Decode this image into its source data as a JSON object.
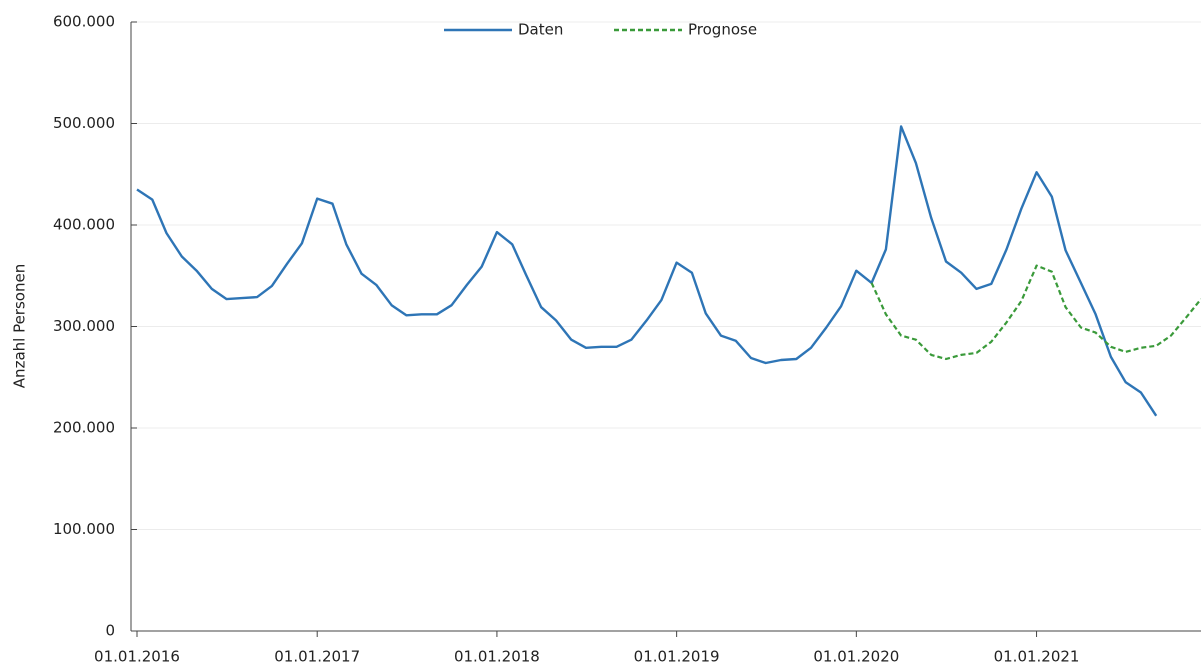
{
  "chart_data": {
    "type": "line",
    "y_label": "Anzahl Personen",
    "x": [
      "01.01.2016",
      "01.02.2016",
      "01.03.2016",
      "01.04.2016",
      "01.05.2016",
      "01.06.2016",
      "01.07.2016",
      "01.08.2016",
      "01.09.2016",
      "01.10.2016",
      "01.11.2016",
      "01.12.2016",
      "01.01.2017",
      "01.02.2017",
      "01.03.2017",
      "01.04.2017",
      "01.05.2017",
      "01.06.2017",
      "01.07.2017",
      "01.08.2017",
      "01.09.2017",
      "01.10.2017",
      "01.11.2017",
      "01.12.2017",
      "01.01.2018",
      "01.02.2018",
      "01.03.2018",
      "01.04.2018",
      "01.05.2018",
      "01.06.2018",
      "01.07.2018",
      "01.08.2018",
      "01.09.2018",
      "01.10.2018",
      "01.11.2018",
      "01.12.2018",
      "01.01.2019",
      "01.02.2019",
      "01.03.2019",
      "01.04.2019",
      "01.05.2019",
      "01.06.2019",
      "01.07.2019",
      "01.08.2019",
      "01.09.2019",
      "01.10.2019",
      "01.11.2019",
      "01.12.2019",
      "01.01.2020",
      "01.02.2020",
      "01.03.2020",
      "01.04.2020",
      "01.05.2020",
      "01.06.2020",
      "01.07.2020",
      "01.08.2020",
      "01.09.2020",
      "01.10.2020",
      "01.11.2020",
      "01.12.2020",
      "01.01.2021",
      "01.02.2021",
      "01.03.2021",
      "01.04.2021",
      "01.05.2021",
      "01.06.2021",
      "01.07.2021",
      "01.08.2021",
      "01.09.2021",
      "01.10.2021",
      "01.11.2021",
      "01.12.2021"
    ],
    "series": [
      {
        "name": "Daten",
        "color": "#2e75b6",
        "dash": false,
        "values": [
          435000,
          425000,
          392000,
          369000,
          355000,
          337000,
          327000,
          328000,
          329000,
          340000,
          362000,
          382000,
          426000,
          421000,
          381000,
          352000,
          341000,
          321000,
          311000,
          312000,
          312000,
          321000,
          341000,
          359000,
          393000,
          381000,
          351000,
          319000,
          306000,
          287000,
          279000,
          280000,
          280000,
          287000,
          306000,
          326000,
          363000,
          353000,
          313000,
          291000,
          286000,
          269000,
          264000,
          267000,
          268000,
          279000,
          299000,
          320000,
          355000,
          343000,
          376000,
          497000,
          461000,
          407000,
          364000,
          353000,
          337000,
          342000,
          376000,
          416000,
          452000,
          428000,
          375000,
          343000,
          312000,
          270000,
          245000,
          235000,
          212000,
          null,
          null,
          null
        ]
      },
      {
        "name": "Prognose",
        "color": "#3a9a3a",
        "dash": true,
        "values": [
          null,
          null,
          null,
          null,
          null,
          null,
          null,
          null,
          null,
          null,
          null,
          null,
          null,
          null,
          null,
          null,
          null,
          null,
          null,
          null,
          null,
          null,
          null,
          null,
          null,
          null,
          null,
          null,
          null,
          null,
          null,
          null,
          null,
          null,
          null,
          null,
          null,
          null,
          null,
          null,
          null,
          null,
          null,
          null,
          null,
          null,
          null,
          null,
          null,
          343000,
          312000,
          291000,
          287000,
          272000,
          268000,
          272000,
          274000,
          285000,
          304000,
          325000,
          360000,
          354000,
          319000,
          299000,
          294000,
          280000,
          275000,
          279000,
          281000,
          291000,
          309000,
          327000
        ]
      }
    ],
    "xlim": [
      "01.01.2016",
      "01.12.2021"
    ],
    "xticks": [
      "01.01.2016",
      "01.01.2017",
      "01.01.2018",
      "01.01.2019",
      "01.01.2020",
      "01.01.2021"
    ],
    "ylim": [
      0,
      600000
    ],
    "yticks": [
      0,
      {
        "value": 100000,
        "label": "100.000"
      },
      {
        "value": 200000,
        "label": "200.000"
      },
      {
        "value": 300000,
        "label": "300.000"
      },
      {
        "value": 400000,
        "label": "400.000"
      },
      {
        "value": 500000,
        "label": "500.000"
      },
      {
        "value": 600000,
        "label": "600.000"
      }
    ],
    "grid": true,
    "legend": "top"
  }
}
